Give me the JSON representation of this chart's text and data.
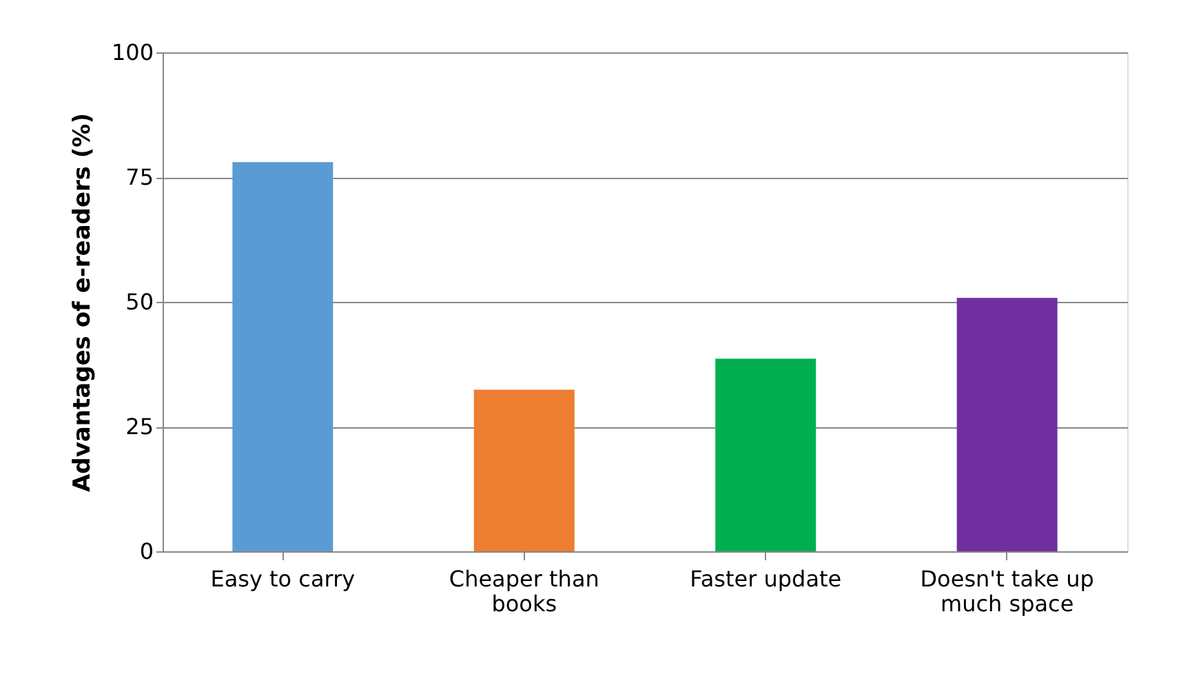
{
  "chart_data": {
    "type": "bar",
    "ylabel": "Advantages of e-readers (%)",
    "categories": [
      "Easy to carry",
      "Cheaper than books",
      "Faster update",
      "Doesn't take up much space"
    ],
    "values": [
      78,
      32.4,
      38.6,
      50.8
    ],
    "colors": [
      "#5b9bd5",
      "#ed7d31",
      "#00b050",
      "#7030a0"
    ],
    "ylim": [
      0,
      100
    ],
    "yticks": [
      0,
      25,
      50,
      75,
      100
    ],
    "grid": "y"
  }
}
